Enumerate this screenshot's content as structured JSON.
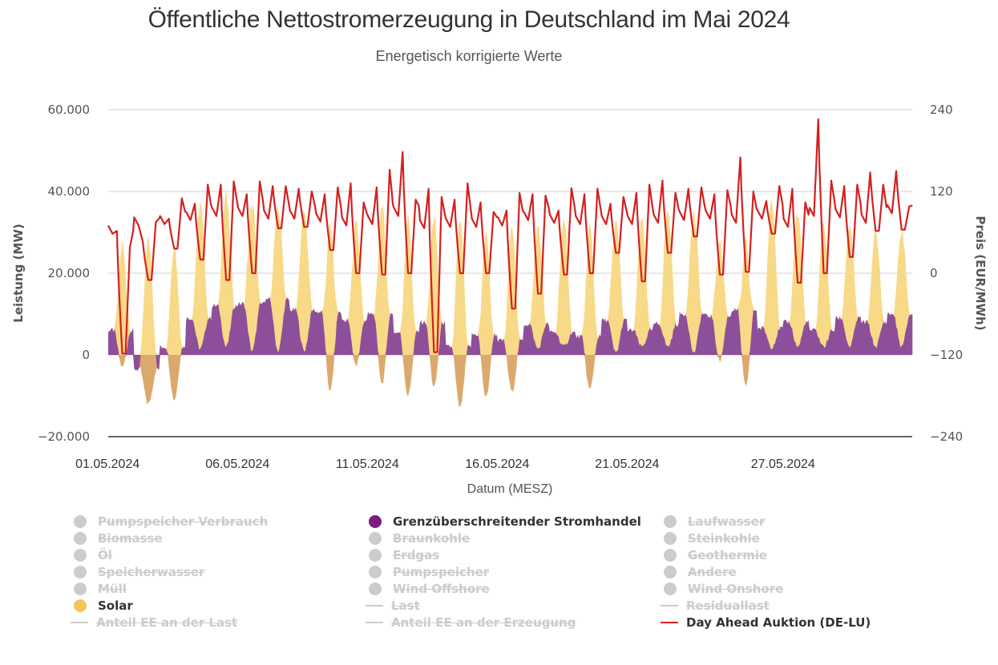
{
  "header": {
    "title": "Öffentliche Nettostromerzeugung in Deutschland im Mai 2024",
    "subtitle": "Energetisch korrigierte Werte"
  },
  "chart_data": {
    "type": "area",
    "title": "Öffentliche Nettostromerzeugung in Deutschland im Mai 2024",
    "subtitle": "Energetisch korrigierte Werte",
    "xlabel": "Datum (MESZ)",
    "ylabel": "Leistung (MW)",
    "y2label": "Preis (EUR/MWh)",
    "ylim": [
      -20000,
      60000
    ],
    "y2lim": [
      -240,
      240
    ],
    "yticks": [
      "60.000",
      "40.000",
      "20.000",
      "0",
      "-20.000"
    ],
    "y2ticks": [
      "240",
      "120",
      "0",
      "-120",
      "-240"
    ],
    "xticks": [
      {
        "label": "01.05.2024",
        "day": 0
      },
      {
        "label": "06.05.2024",
        "day": 5
      },
      {
        "label": "11.05.2024",
        "day": 10
      },
      {
        "label": "16.05.2024",
        "day": 15
      },
      {
        "label": "21.05.2024",
        "day": 20
      },
      {
        "label": "27.05.2024",
        "day": 26
      }
    ],
    "grid": true,
    "days": 31,
    "series": [
      {
        "name": "Grenzüberschreitender Stromhandel",
        "type": "area",
        "axis": "left",
        "color": "#8e4f9a",
        "unit": "MW",
        "night_level_per_day": [
          6000,
          -3500,
          2000,
          9000,
          12000,
          12500,
          13500,
          11000,
          10500,
          8500,
          10000,
          5500,
          8000,
          2000,
          5000,
          3500,
          7500,
          5500,
          4500,
          8500,
          6000,
          7500,
          10000,
          9500,
          11000,
          6500,
          8000,
          6000,
          9000,
          8000,
          10000
        ],
        "day_min_per_day": [
          -3000,
          -12000,
          -11000,
          1500,
          2000,
          1000,
          1000,
          1000,
          -9000,
          -2500,
          -7000,
          -10000,
          -8000,
          -13000,
          -10500,
          -9000,
          1500,
          2000,
          -8500,
          500,
          2000,
          2000,
          500,
          -1500,
          -8000,
          2000,
          2000,
          2000,
          2000,
          2000,
          2000
        ]
      },
      {
        "name": "Solar",
        "type": "area",
        "axis": "left",
        "color": "#f5c55a",
        "unit": "MW",
        "daily_peak_MW": [
          27000,
          28000,
          26500,
          36000,
          37000,
          36000,
          35000,
          34000,
          32000,
          33000,
          37000,
          34000,
          34000,
          33000,
          30000,
          31000,
          30000,
          31000,
          31000,
          32000,
          31000,
          34000,
          35000,
          28000,
          28000,
          36000,
          33000,
          30000,
          30000,
          28000,
          28000
        ]
      },
      {
        "name": "Day Ahead Auktion (DE-LU)",
        "type": "line",
        "axis": "right",
        "color": "#d42020",
        "unit": "EUR/MWh",
        "daily_morning_peak": [
          62,
          46,
          80,
          102,
          130,
          116,
          128,
          124,
          116,
          132,
          126,
          178,
          124,
          108,
          104,
          92,
          116,
          92,
          116,
          102,
          118,
          136,
          124,
          116,
          170,
          106,
          124,
          226,
          128,
          148,
          150
        ],
        "daily_evening_peak": [
          38,
          75,
          110,
          130,
          135,
          135,
          128,
          120,
          126,
          104,
          152,
          108,
          112,
          132,
          90,
          118,
          114,
          125,
          124,
          112,
          130,
          118,
          126,
          122,
          120,
          128,
          104,
          136,
          130,
          130,
          98
        ],
        "daily_midday_min": [
          -120,
          -10,
          36,
          20,
          -10,
          0,
          66,
          68,
          34,
          0,
          -2,
          0,
          -116,
          0,
          0,
          -52,
          -30,
          -2,
          0,
          30,
          -12,
          30,
          54,
          -2,
          2,
          58,
          -14,
          0,
          24,
          62,
          64
        ],
        "night_level": [
          70,
          82,
          84,
          90,
          96,
          96,
          92,
          92,
          88,
          82,
          84,
          96,
          78,
          80,
          80,
          82,
          90,
          86,
          84,
          84,
          84,
          86,
          90,
          92,
          86,
          92,
          80,
          96,
          94,
          86,
          100
        ]
      }
    ]
  },
  "legend": {
    "items": [
      {
        "label": "Pumpspeicher Verbrauch",
        "symbol": "dot",
        "active": false,
        "color": "#cccccc"
      },
      {
        "label": "Grenzüberschreitender Stromhandel",
        "symbol": "dot",
        "active": true,
        "color": "#7b1d7e"
      },
      {
        "label": "Laufwasser",
        "symbol": "dot",
        "active": false,
        "color": "#cccccc"
      },
      {
        "label": "Biomasse",
        "symbol": "dot",
        "active": false,
        "color": "#cccccc"
      },
      {
        "label": "Braunkohle",
        "symbol": "dot",
        "active": false,
        "color": "#cccccc"
      },
      {
        "label": "Steinkohle",
        "symbol": "dot",
        "active": false,
        "color": "#cccccc"
      },
      {
        "label": "Öl",
        "symbol": "dot",
        "active": false,
        "color": "#cccccc"
      },
      {
        "label": "Erdgas",
        "symbol": "dot",
        "active": false,
        "color": "#cccccc"
      },
      {
        "label": "Geothermie",
        "symbol": "dot",
        "active": false,
        "color": "#cccccc"
      },
      {
        "label": "Speicherwasser",
        "symbol": "dot",
        "active": false,
        "color": "#cccccc"
      },
      {
        "label": "Pumpspeicher",
        "symbol": "dot",
        "active": false,
        "color": "#cccccc"
      },
      {
        "label": "Andere",
        "symbol": "dot",
        "active": false,
        "color": "#cccccc"
      },
      {
        "label": "Müll",
        "symbol": "dot",
        "active": false,
        "color": "#cccccc"
      },
      {
        "label": "Wind Offshore",
        "symbol": "dot",
        "active": false,
        "color": "#cccccc"
      },
      {
        "label": "Wind Onshore",
        "symbol": "dot",
        "active": false,
        "color": "#cccccc"
      },
      {
        "label": "Solar",
        "symbol": "dot",
        "active": true,
        "color": "#f5c55a"
      },
      {
        "label": "Last",
        "symbol": "line",
        "active": false,
        "color": "#cccccc"
      },
      {
        "label": "Residuallast",
        "symbol": "line",
        "active": false,
        "color": "#cccccc"
      },
      {
        "label": "Anteil EE an der Last",
        "symbol": "line",
        "active": false,
        "color": "#cccccc"
      },
      {
        "label": "Anteil EE an der Erzeugung",
        "symbol": "line",
        "active": false,
        "color": "#cccccc"
      },
      {
        "label": "Day Ahead Auktion (DE-LU)",
        "symbol": "line",
        "active": true,
        "color": "#d42020"
      }
    ]
  }
}
